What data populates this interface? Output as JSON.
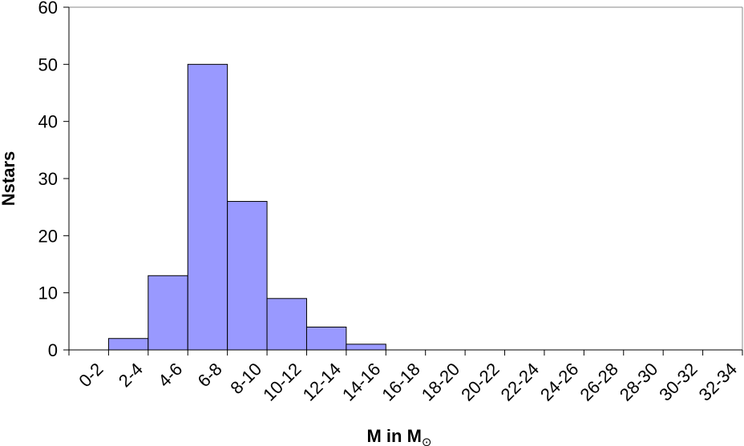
{
  "chart_data": {
    "type": "bar",
    "title": "",
    "xlabel": "M in M",
    "xlabel_symbol": "⊙",
    "ylabel": "Nstars",
    "ylim": [
      0,
      60
    ],
    "yticks": [
      0,
      10,
      20,
      30,
      40,
      50,
      60
    ],
    "categories": [
      "0-2",
      "2-4",
      "4-6",
      "6-8",
      "8-10",
      "10-12",
      "12-14",
      "14-16",
      "16-18",
      "18-20",
      "20-22",
      "22-24",
      "24-26",
      "26-28",
      "28-30",
      "30-32",
      "32-34"
    ],
    "values": [
      0,
      2,
      13,
      50,
      26,
      9,
      4,
      1,
      0,
      0,
      0,
      0,
      0,
      0,
      0,
      0,
      0
    ],
    "bar_color": "#9999ff",
    "bar_edge_color": "#000000",
    "grid": false,
    "legend": "none"
  }
}
